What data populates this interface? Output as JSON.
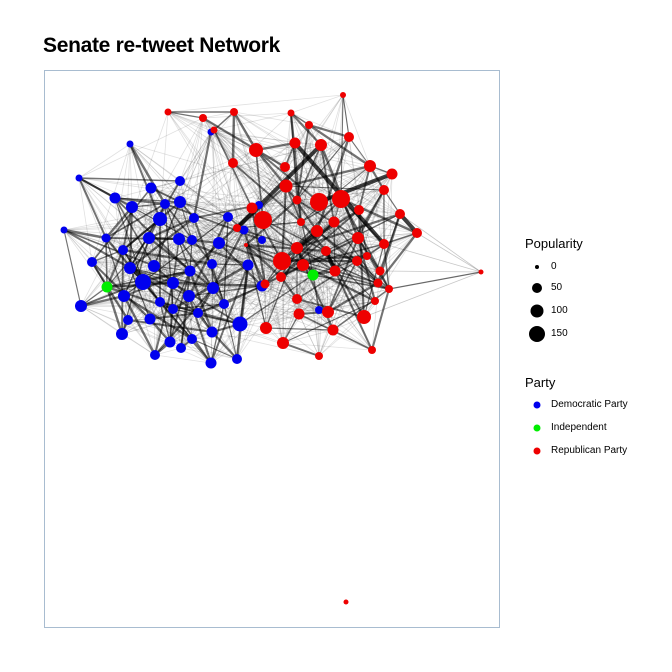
{
  "title": "Senate re-tweet Network",
  "legend": {
    "size_title": "Popularity",
    "size_items": [
      {
        "label": "0",
        "value": 0
      },
      {
        "label": "50",
        "value": 50
      },
      {
        "label": "100",
        "value": 100
      },
      {
        "label": "150",
        "value": 150
      }
    ],
    "color_title": "Party",
    "color_items": [
      {
        "label": "Democratic Party",
        "color": "#0000ee"
      },
      {
        "label": "Independent",
        "color": "#00ee00"
      },
      {
        "label": "Republican Party",
        "color": "#ee0000"
      }
    ]
  }
}
